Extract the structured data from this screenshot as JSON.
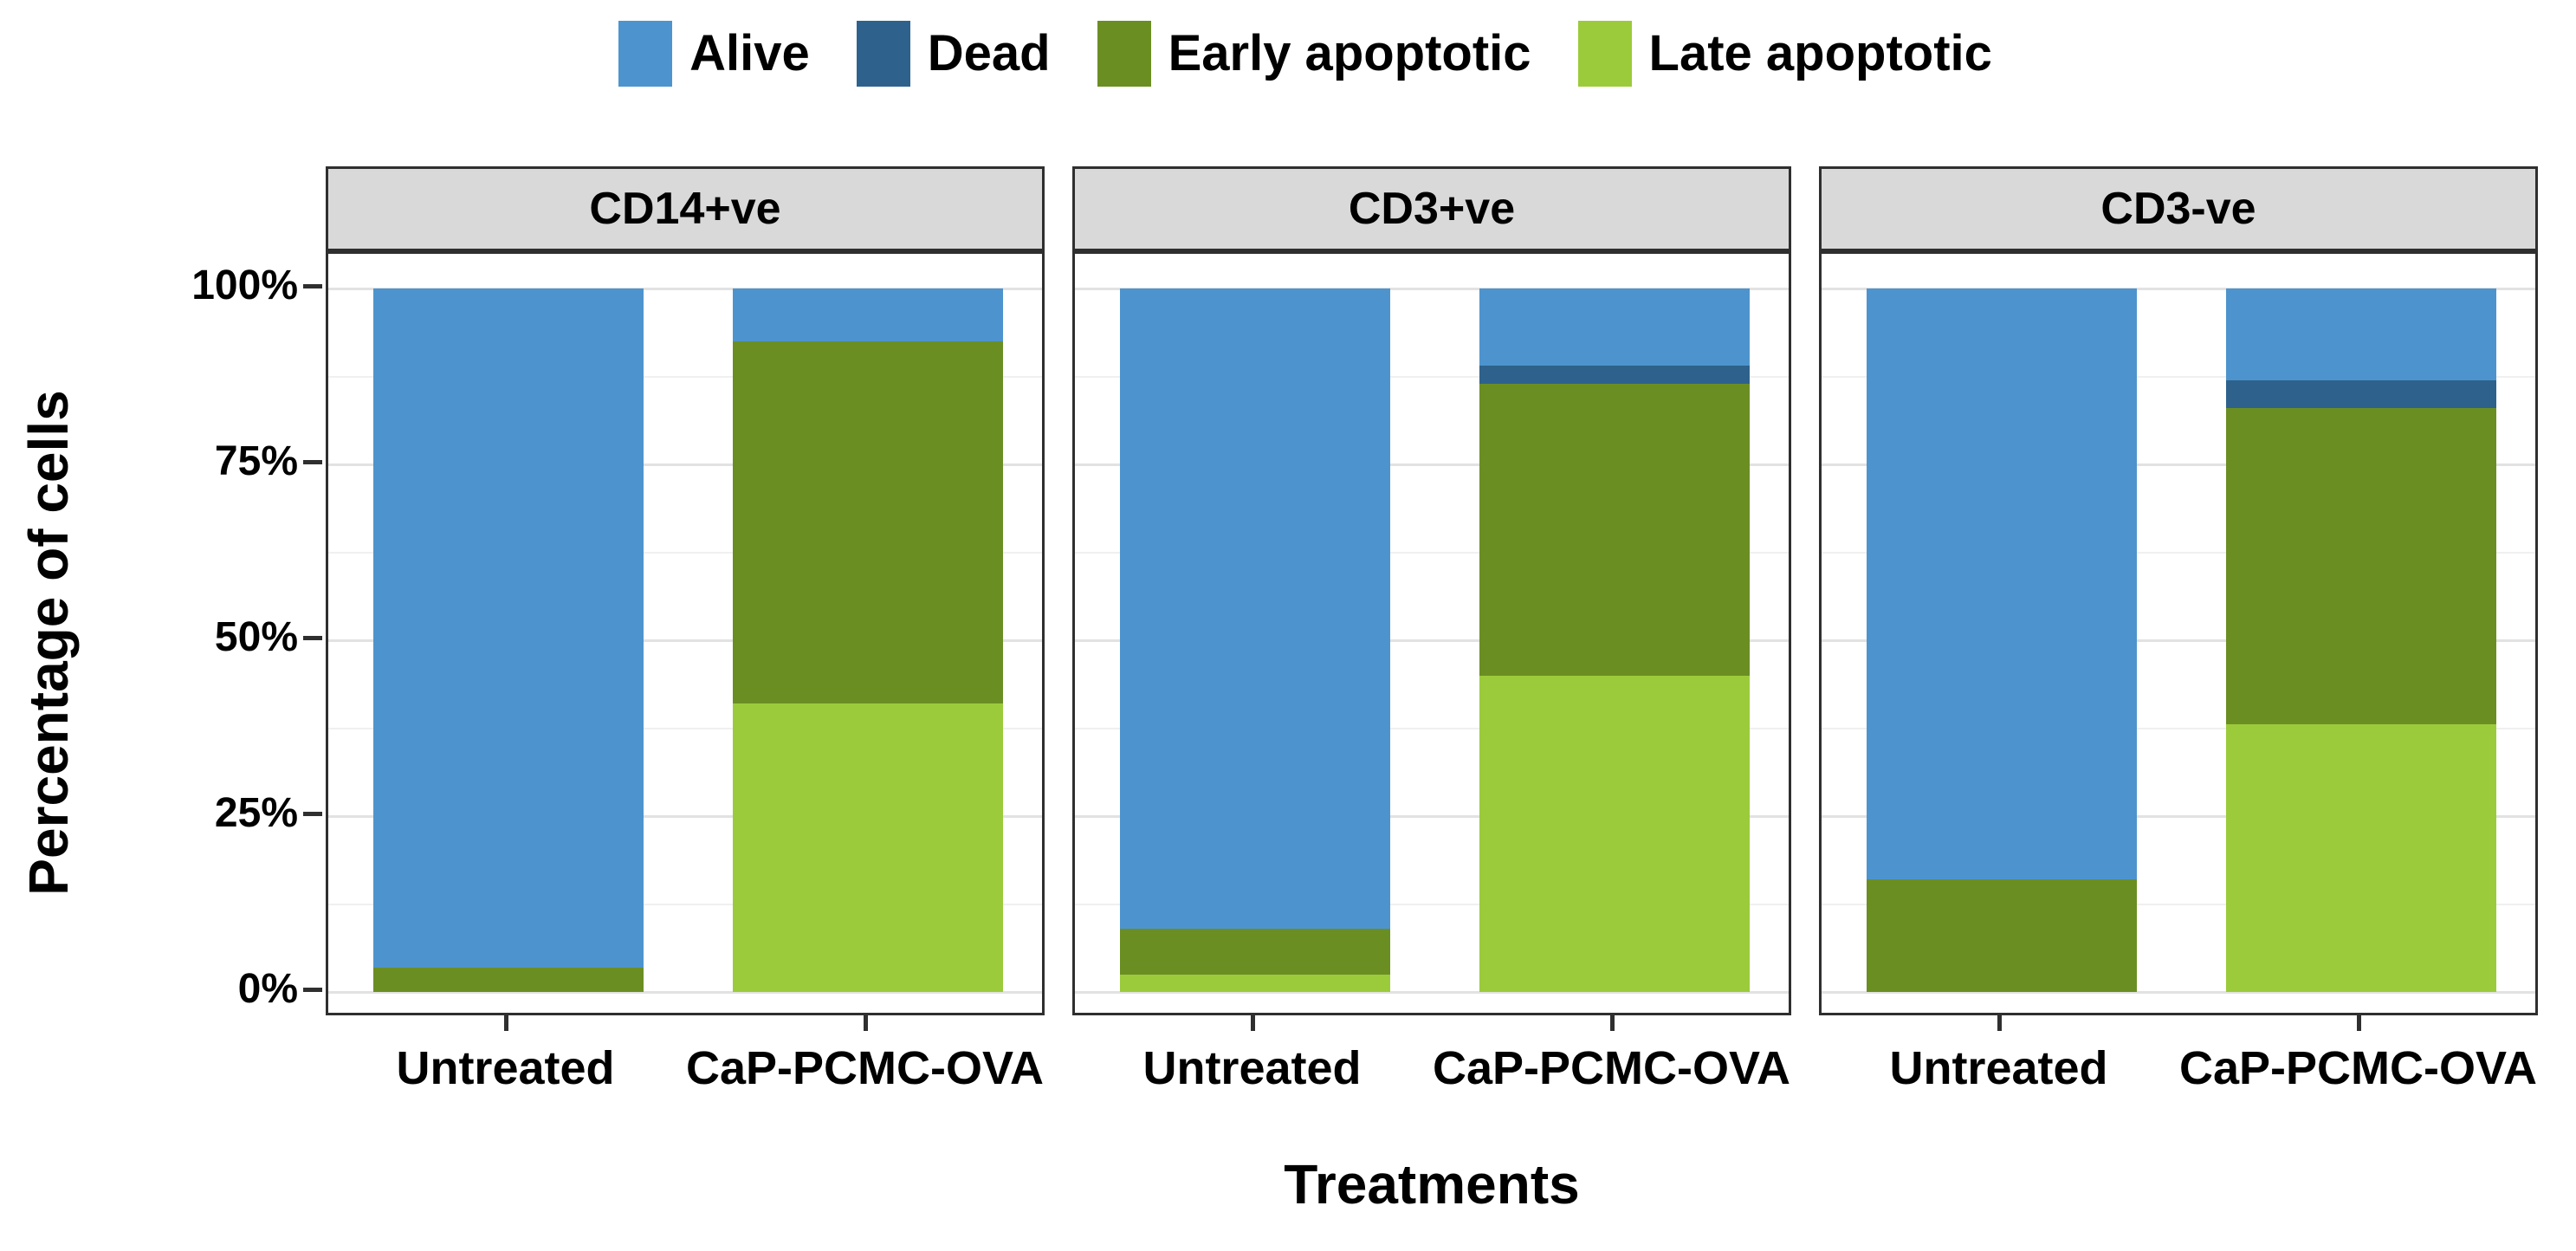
{
  "figure": {
    "background": "#ffffff",
    "y_axis_title": "Percentage of cells",
    "x_axis_title": "Treatments"
  },
  "legend": {
    "position": "top",
    "items": [
      {
        "label": "Alive",
        "color": "#4d94ce"
      },
      {
        "label": "Dead",
        "color": "#2e628c"
      },
      {
        "label": "Early apoptotic",
        "color": "#6b8e23"
      },
      {
        "label": "Late apoptotic",
        "color": "#9bcb3b"
      }
    ]
  },
  "chart_data": {
    "type": "bar",
    "stacked": true,
    "unit": "percent of cells",
    "title": "",
    "xlabel": "Treatments",
    "ylabel": "Percentage of cells",
    "ylim": [
      0,
      100
    ],
    "grid": true,
    "legend_position": "top",
    "facets": [
      "CD14+ve",
      "CD3+ve",
      "CD3-ve"
    ],
    "categories": [
      "Untreated",
      "CaP-PCMC-OVA"
    ],
    "series": [
      {
        "name": "Alive",
        "color": "#4d94ce",
        "values": [
          [
            96.5,
            7.5
          ],
          [
            91.0,
            11.0
          ],
          [
            84.0,
            13.0
          ]
        ]
      },
      {
        "name": "Dead",
        "color": "#2e628c",
        "values": [
          [
            0,
            0
          ],
          [
            0,
            2.5
          ],
          [
            0,
            4.0
          ]
        ]
      },
      {
        "name": "Early apoptotic",
        "color": "#6b8e23",
        "values": [
          [
            3.5,
            51.5
          ],
          [
            6.5,
            41.5
          ],
          [
            16.0,
            45.0
          ]
        ]
      },
      {
        "name": "Late apoptotic",
        "color": "#9bcb3b",
        "values": [
          [
            0,
            41.0
          ],
          [
            2.5,
            45.0
          ],
          [
            0,
            38.0
          ]
        ]
      }
    ],
    "stack_order_bottom_to_top": [
      "Late apoptotic",
      "Early apoptotic",
      "Dead",
      "Alive"
    ],
    "y_major_ticks": [
      0,
      25,
      50,
      75,
      100
    ],
    "y_minor_ticks": [
      12.5,
      37.5,
      62.5,
      87.5
    ],
    "y_tick_labels": [
      {
        "value": 100,
        "label": "100%"
      },
      {
        "value": 75,
        "label": "75%"
      },
      {
        "value": 50,
        "label": "50%"
      },
      {
        "value": 25,
        "label": "25%"
      },
      {
        "value": 0,
        "label": "0%"
      }
    ]
  },
  "style": {
    "panel_border": "#2f2f2f",
    "strip_fill": "#d9d9d9",
    "gridline_major": "#e2e2e2",
    "gridline_minor": "#f0f0f0",
    "text_color": "#000000"
  }
}
